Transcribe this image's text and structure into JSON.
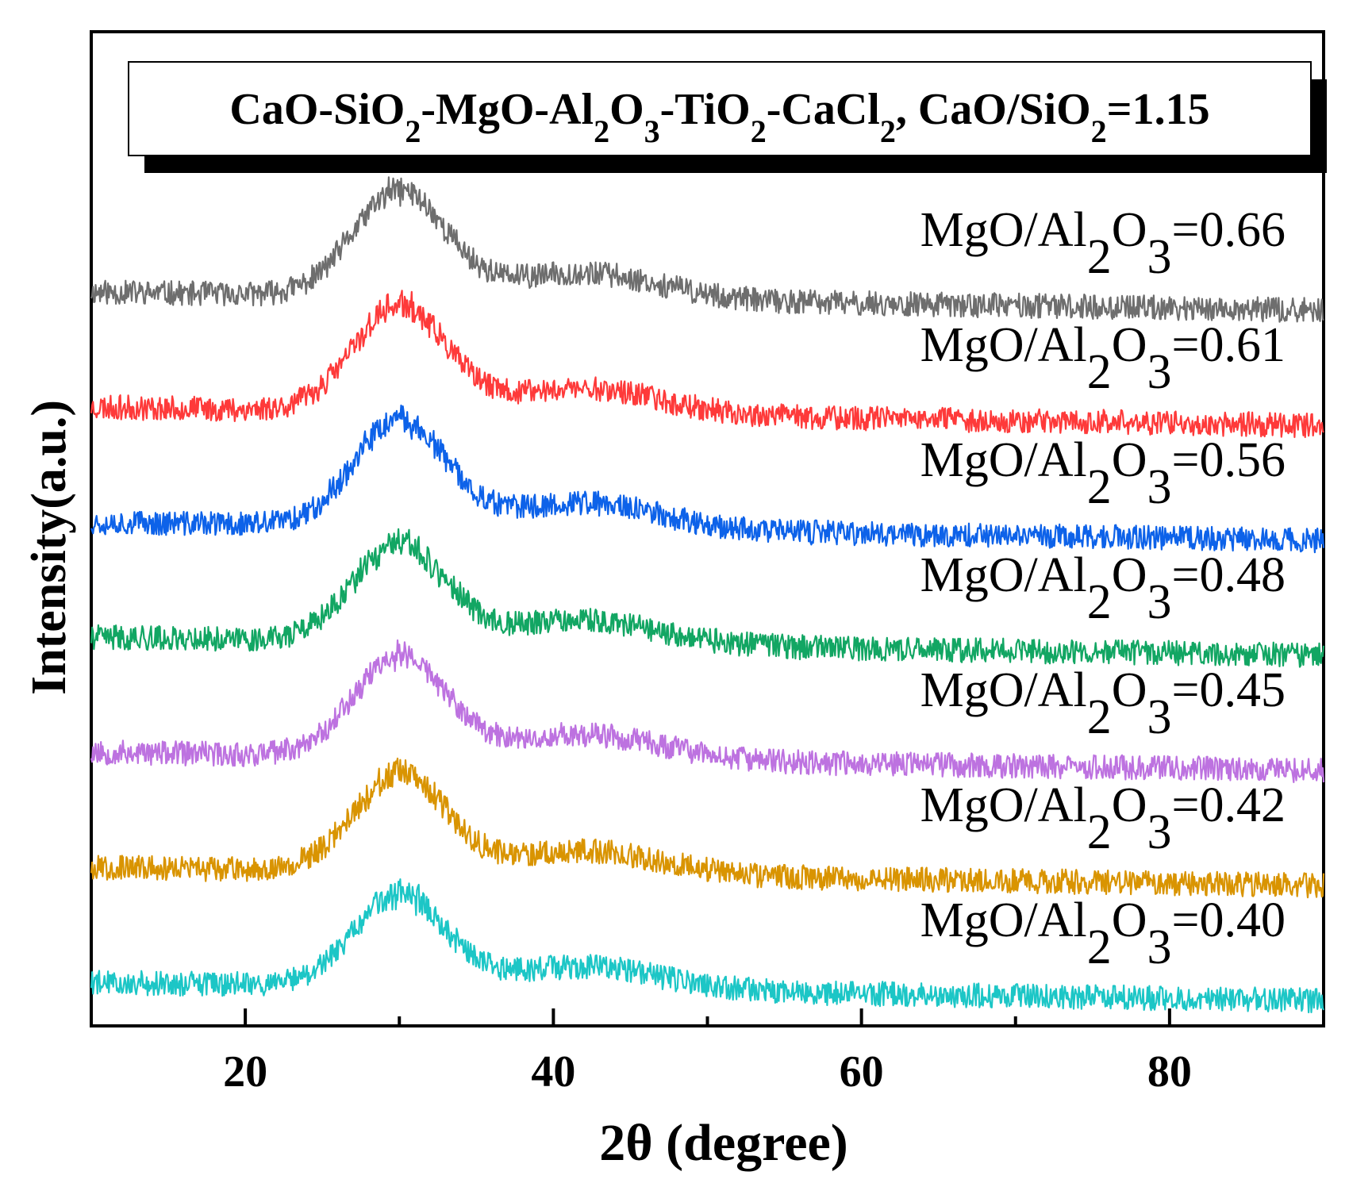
{
  "chart_data": {
    "type": "line",
    "title": {
      "parts": [
        {
          "t": "CaO-SiO"
        },
        {
          "t": "2",
          "sub": true
        },
        {
          "t": "-MgO-Al"
        },
        {
          "t": "2",
          "sub": true
        },
        {
          "t": "O"
        },
        {
          "t": "3",
          "sub": true
        },
        {
          "t": "-TiO"
        },
        {
          "t": "2",
          "sub": true
        },
        {
          "t": "-CaCl"
        },
        {
          "t": "2",
          "sub": true
        },
        {
          "t": ", CaO/SiO"
        },
        {
          "t": "2",
          "sub": true
        },
        {
          "t": "=1.15"
        }
      ]
    },
    "xlabel": "2θ (degree)",
    "ylabel": "Intensity(a.u.)",
    "xlim": [
      10,
      90
    ],
    "xticks": [
      20,
      40,
      60,
      80
    ],
    "xtick_labels": [
      "20",
      "40",
      "60",
      "80"
    ],
    "minor_xticks": [
      30,
      50,
      70
    ],
    "y_units": "arbitrary (stacked, offset per series)",
    "peak_center": 30,
    "series": [
      {
        "name": "MgO/Al2O3=0.66",
        "label_prefix": "MgO/Al",
        "label_sub1": "2",
        "label_mid": "O",
        "label_sub2": "3",
        "label_suffix": "=0.66",
        "ratio": 0.66,
        "color": "#6e6e6e",
        "offset": 6.0,
        "baseline_at_10": 0.0,
        "peak_height": 1.15,
        "seed": 11
      },
      {
        "name": "MgO/Al2O3=0.61",
        "label_prefix": "MgO/Al",
        "label_sub1": "2",
        "label_mid": "O",
        "label_sub2": "3",
        "label_suffix": "=0.61",
        "ratio": 0.61,
        "color": "#fe3a3a",
        "offset": 5.0,
        "baseline_at_10": 0.0,
        "peak_height": 1.15,
        "seed": 23
      },
      {
        "name": "MgO/Al2O3=0.56",
        "label_prefix": "MgO/Al",
        "label_sub1": "2",
        "label_mid": "O",
        "label_sub2": "3",
        "label_suffix": "=0.56",
        "ratio": 0.56,
        "color": "#0d62e9",
        "offset": 4.0,
        "baseline_at_10": 0.0,
        "peak_height": 1.15,
        "seed": 37
      },
      {
        "name": "MgO/Al2O3=0.48",
        "label_prefix": "MgO/Al",
        "label_sub1": "2",
        "label_mid": "O",
        "label_sub2": "3",
        "label_suffix": "=0.48",
        "ratio": 0.48,
        "color": "#12a663",
        "offset": 3.0,
        "baseline_at_10": 0.0,
        "peak_height": 1.05,
        "seed": 41
      },
      {
        "name": "MgO/Al2O3=0.45",
        "label_prefix": "MgO/Al",
        "label_sub1": "2",
        "label_mid": "O",
        "label_sub2": "3",
        "label_suffix": "=0.45",
        "ratio": 0.45,
        "color": "#bd72e0",
        "offset": 2.0,
        "baseline_at_10": 0.0,
        "peak_height": 1.1,
        "seed": 53
      },
      {
        "name": "MgO/Al2O3=0.42",
        "label_prefix": "MgO/Al",
        "label_sub1": "2",
        "label_mid": "O",
        "label_sub2": "3",
        "label_suffix": "=0.42",
        "ratio": 0.42,
        "color": "#d99401",
        "offset": 1.0,
        "baseline_at_10": 0.0,
        "peak_height": 1.05,
        "seed": 67
      },
      {
        "name": "MgO/Al2O3=0.40",
        "label_prefix": "MgO/Al",
        "label_sub1": "2",
        "label_mid": "O",
        "label_sub2": "3",
        "label_suffix": "=0.40",
        "ratio": 0.4,
        "color": "#1cc6c6",
        "offset": 0.0,
        "baseline_at_10": 0.0,
        "peak_height": 1.0,
        "seed": 79
      }
    ]
  }
}
